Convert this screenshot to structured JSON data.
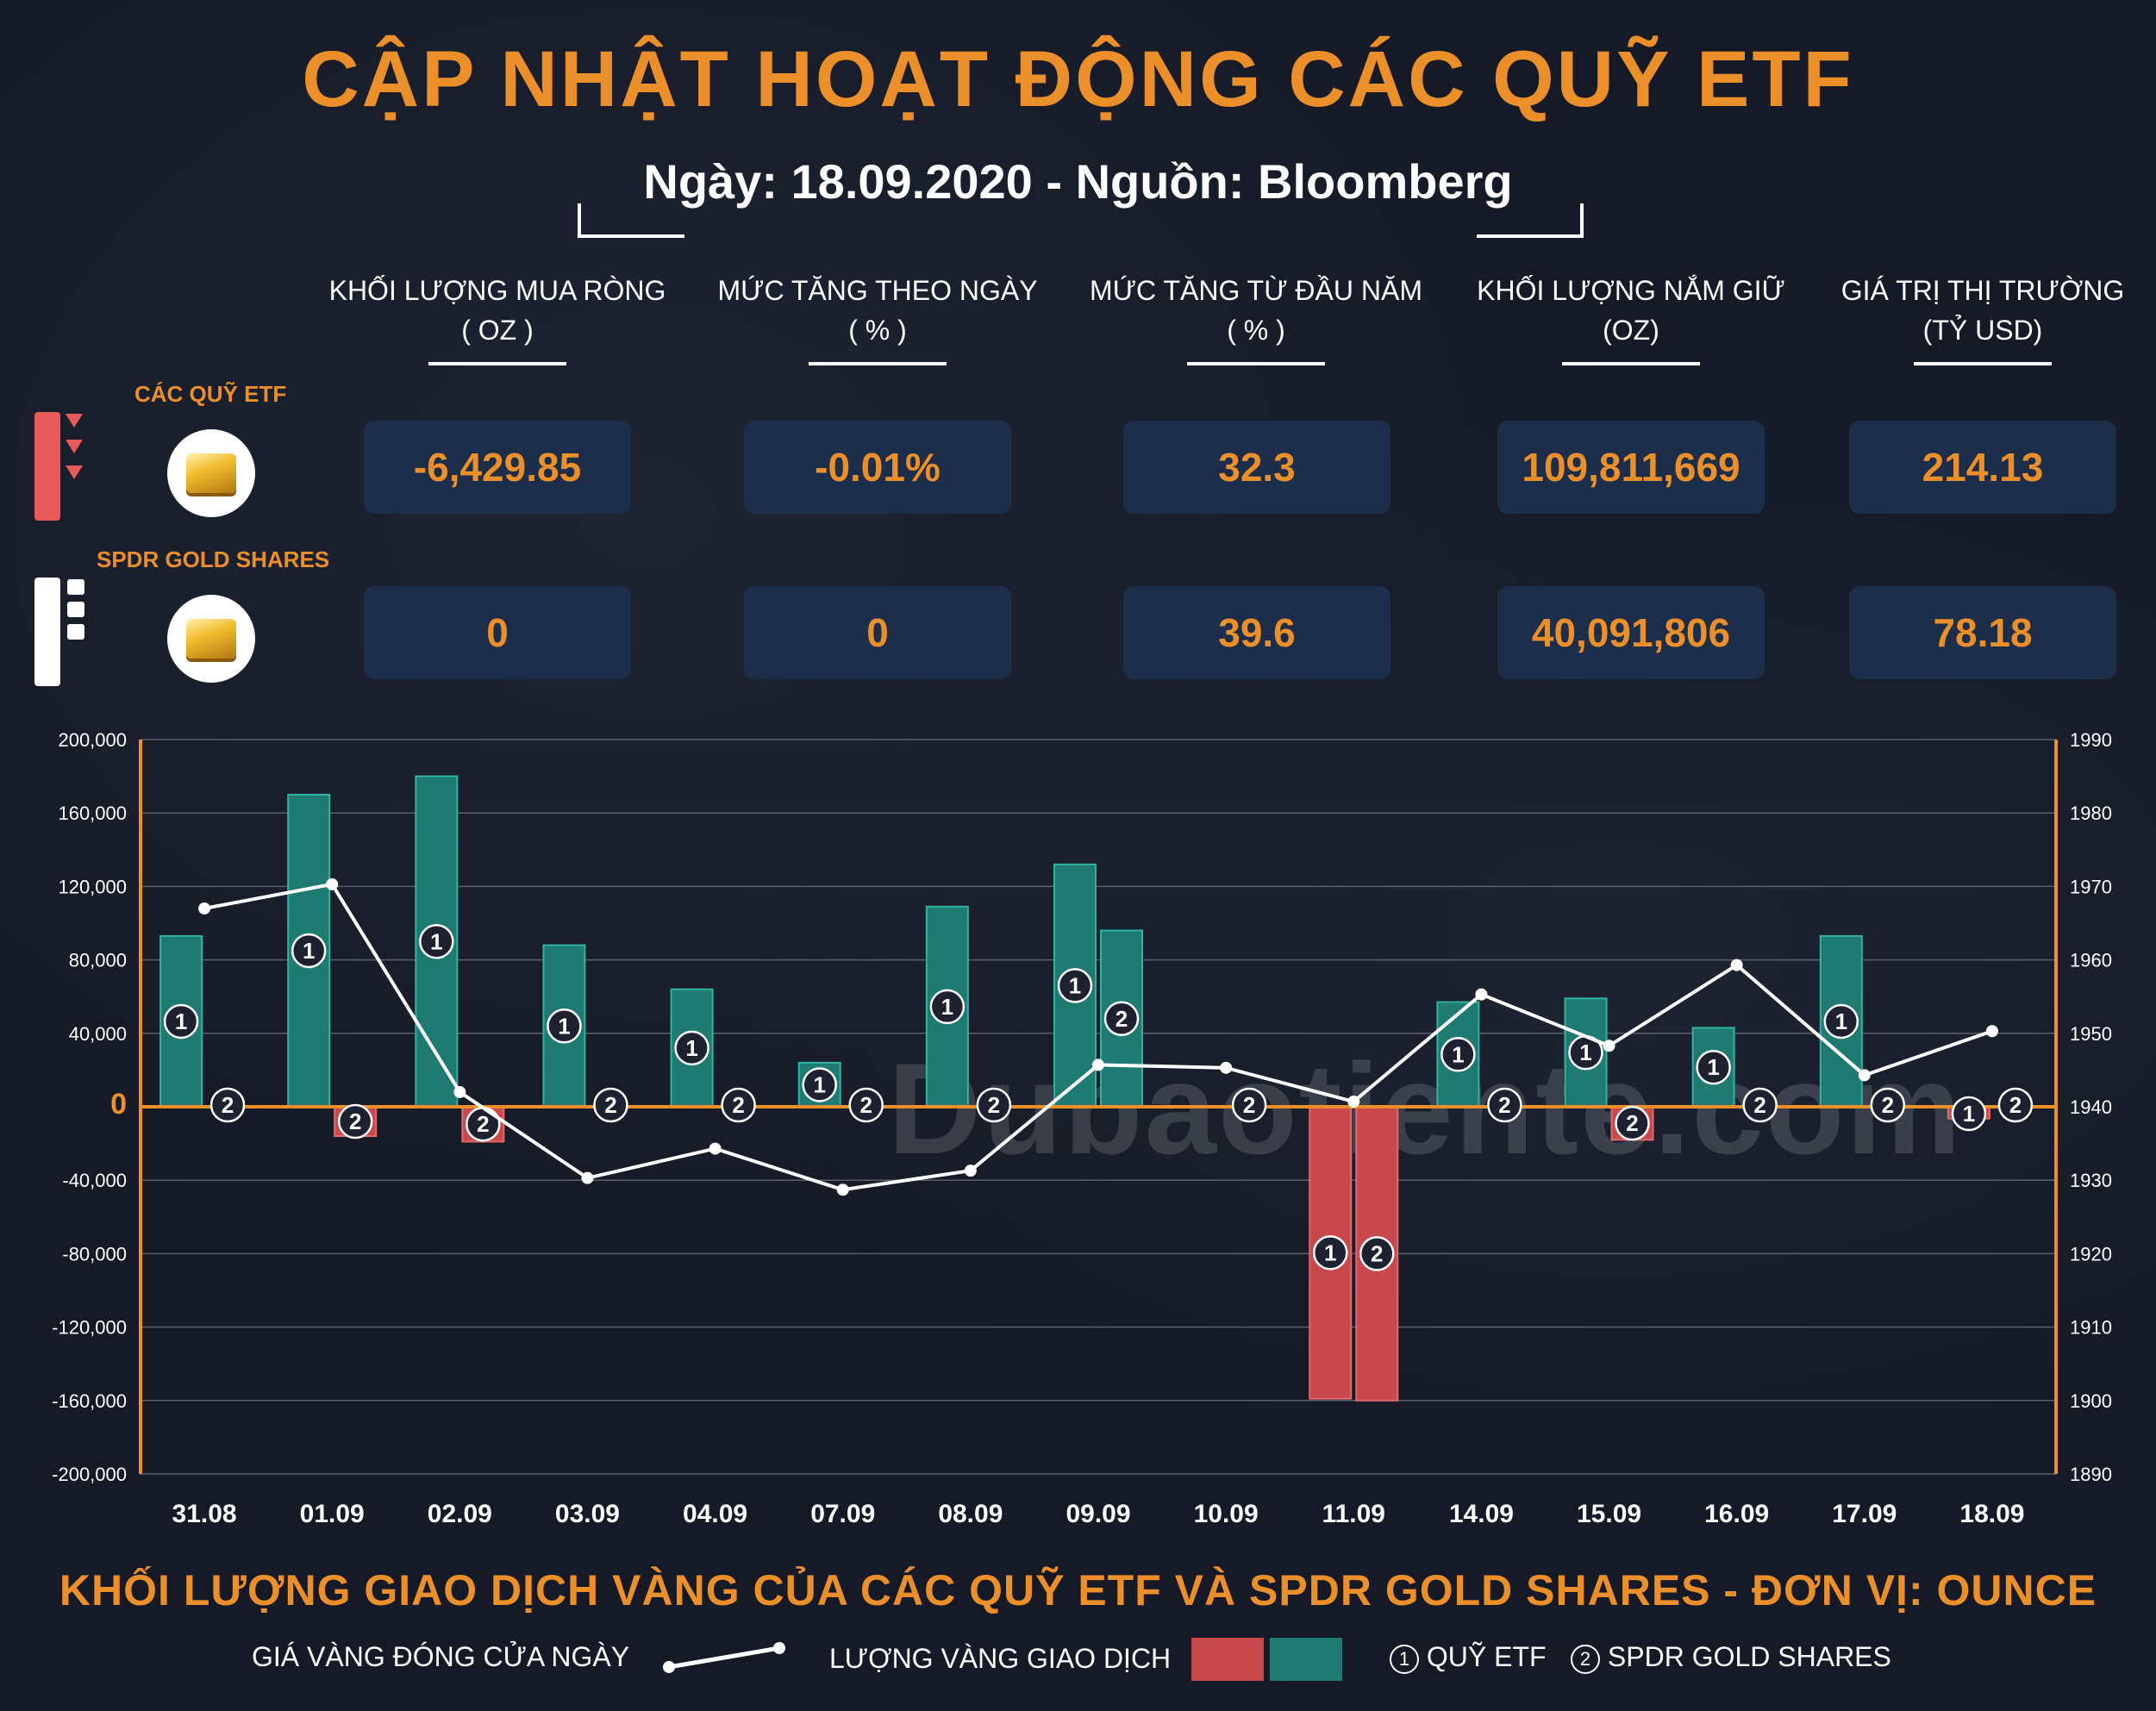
{
  "header": {
    "title": "CẬP NHẬT HOẠT ĐỘNG CÁC QUỸ ETF",
    "subtitle": "Ngày: 18.09.2020 - Nguồn: Bloomberg"
  },
  "table": {
    "columns": [
      {
        "line1": "KHỐI LƯỢNG MUA RÒNG",
        "line2": "( OZ )"
      },
      {
        "line1": "MỨC TĂNG THEO NGÀY",
        "line2": "( % )"
      },
      {
        "line1": "MỨC TĂNG TỪ ĐẦU NĂM",
        "line2": "( % )"
      },
      {
        "line1": "KHỐI LƯỢNG NẮM GIỮ",
        "line2": "(OZ)"
      },
      {
        "line1": "GIÁ TRỊ THỊ TRƯỜNG",
        "line2": "(TỶ USD)"
      }
    ],
    "rows": [
      {
        "label": "CÁC QUỸ ETF",
        "values": [
          "-6,429.85",
          "-0.01%",
          "32.3",
          "109,811,669",
          "214.13"
        ]
      },
      {
        "label": "SPDR GOLD SHARES",
        "values": [
          "0",
          "0",
          "39.6",
          "40,091,806",
          "78.18"
        ]
      }
    ]
  },
  "colors": {
    "accent": "#ea8f2a",
    "positive": "#1f7b72",
    "negative": "#c9484c",
    "line": "#ffffff",
    "box": "#1c2e4a"
  },
  "chart_data": {
    "type": "bar",
    "title": "KHỐI LƯỢNG GIAO DỊCH VÀNG CỦA CÁC QUỸ ETF VÀ SPDR GOLD SHARES - ĐƠN VỊ: OUNCE",
    "categories": [
      "31.08",
      "01.09",
      "02.09",
      "03.09",
      "04.09",
      "07.09",
      "08.09",
      "09.09",
      "10.09",
      "11.09",
      "14.09",
      "15.09",
      "16.09",
      "17.09",
      "18.09"
    ],
    "series": [
      {
        "name": "QUỸ ETF",
        "marker": "1",
        "values": [
          93000,
          170000,
          180000,
          88000,
          64000,
          24000,
          109000,
          132000,
          0,
          -159000,
          57000,
          59000,
          43000,
          93000,
          -6430
        ]
      },
      {
        "name": "SPDR GOLD SHARES",
        "marker": "2",
        "values": [
          0,
          -16000,
          -19000,
          0,
          0,
          0,
          0,
          96000,
          0,
          -160000,
          0,
          -18000,
          0,
          0,
          0
        ]
      },
      {
        "name": "GIÁ VÀNG ĐÓNG CỬA NGÀY",
        "axis": "right",
        "type": "line",
        "values": [
          1967.0,
          1970.3,
          1942.0,
          1930.3,
          1934.3,
          1928.7,
          1931.3,
          1945.7,
          1945.3,
          1940.7,
          1955.3,
          1948.3,
          1959.3,
          1944.3,
          1950.3
        ]
      }
    ],
    "ylim": [
      -200000,
      200000
    ],
    "yticks": [
      "200,000",
      "160,000",
      "120,000",
      "80,000",
      "40,000",
      "0",
      "-40,000",
      "-80,000",
      "-120,000",
      "-160,000",
      "-200,000"
    ],
    "y2lim": [
      1890,
      1990
    ],
    "y2ticks": [
      "1990",
      "1980",
      "1970",
      "1960",
      "1950",
      "1940",
      "1930",
      "1920",
      "1910",
      "1900",
      "1890"
    ],
    "grid": true,
    "zero_label": "0"
  },
  "legend": {
    "price_label": "GIÁ VÀNG ĐÓNG CỬA NGÀY",
    "volume_label": "LƯỢNG VÀNG GIAO DỊCH",
    "etf_marker": "1",
    "etf_label": "QUỸ ETF",
    "spdr_marker": "2",
    "spdr_label": "SPDR GOLD SHARES"
  },
  "watermark": "Dubaotiente.com"
}
